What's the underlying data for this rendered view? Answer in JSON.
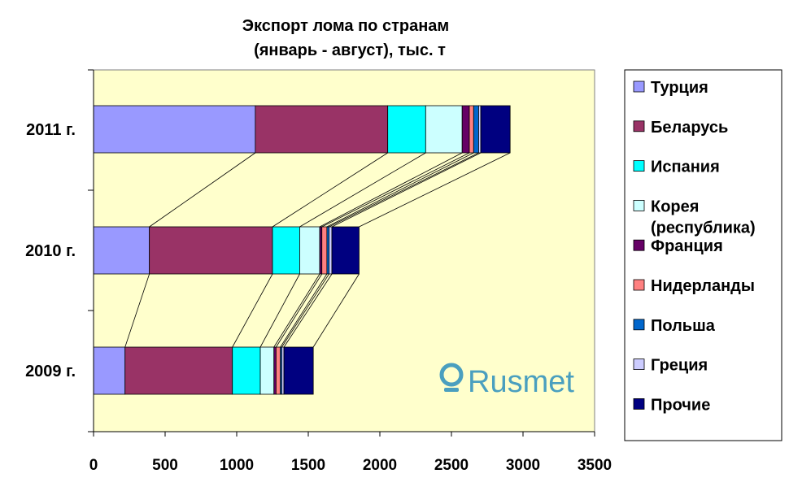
{
  "chart_data": {
    "type": "bar",
    "orientation": "horizontal",
    "stacked": true,
    "title": [
      "Экспорт лома по странам",
      "(январь - август), тыс. т"
    ],
    "categories": [
      "2011 г.",
      "2010 г.",
      "2009 г."
    ],
    "xlim": [
      0,
      3500
    ],
    "xticks": [
      0,
      500,
      1000,
      1500,
      2000,
      2500,
      3000,
      3500
    ],
    "series": [
      {
        "name": "Турция",
        "color": "#9999ff",
        "values": [
          1130,
          390,
          220
        ]
      },
      {
        "name": "Беларусь",
        "color": "#993366",
        "values": [
          925,
          860,
          750
        ]
      },
      {
        "name": "Испания",
        "color": "#00ffff",
        "values": [
          265,
          190,
          195
        ]
      },
      {
        "name": "Корея (республика)",
        "color": "#ccffff",
        "values": [
          255,
          140,
          95
        ]
      },
      {
        "name": "Франция",
        "color": "#660066",
        "values": [
          50,
          15,
          15
        ]
      },
      {
        "name": "Нидерланды",
        "color": "#ff8080",
        "values": [
          30,
          35,
          30
        ]
      },
      {
        "name": "Польша",
        "color": "#0066cc",
        "values": [
          35,
          15,
          10
        ]
      },
      {
        "name": "Греция",
        "color": "#ccccff",
        "values": [
          15,
          20,
          15
        ]
      },
      {
        "name": "Прочие",
        "color": "#000080",
        "values": [
          205,
          190,
          205
        ]
      }
    ],
    "series_lines": true,
    "legend_position": "right",
    "plot_background": "#ffffcc"
  },
  "legend": {
    "items": [
      {
        "label_lines": [
          "Турция"
        ]
      },
      {
        "label_lines": [
          "Беларусь"
        ]
      },
      {
        "label_lines": [
          "Испания"
        ]
      },
      {
        "label_lines": [
          "Корея",
          "(республика)"
        ]
      },
      {
        "label_lines": [
          "Франция"
        ]
      },
      {
        "label_lines": [
          "Нидерланды"
        ]
      },
      {
        "label_lines": [
          "Польша"
        ]
      },
      {
        "label_lines": [
          "Греция"
        ]
      },
      {
        "label_lines": [
          "Прочие"
        ]
      }
    ]
  },
  "watermark": {
    "text": "Rusmet"
  }
}
